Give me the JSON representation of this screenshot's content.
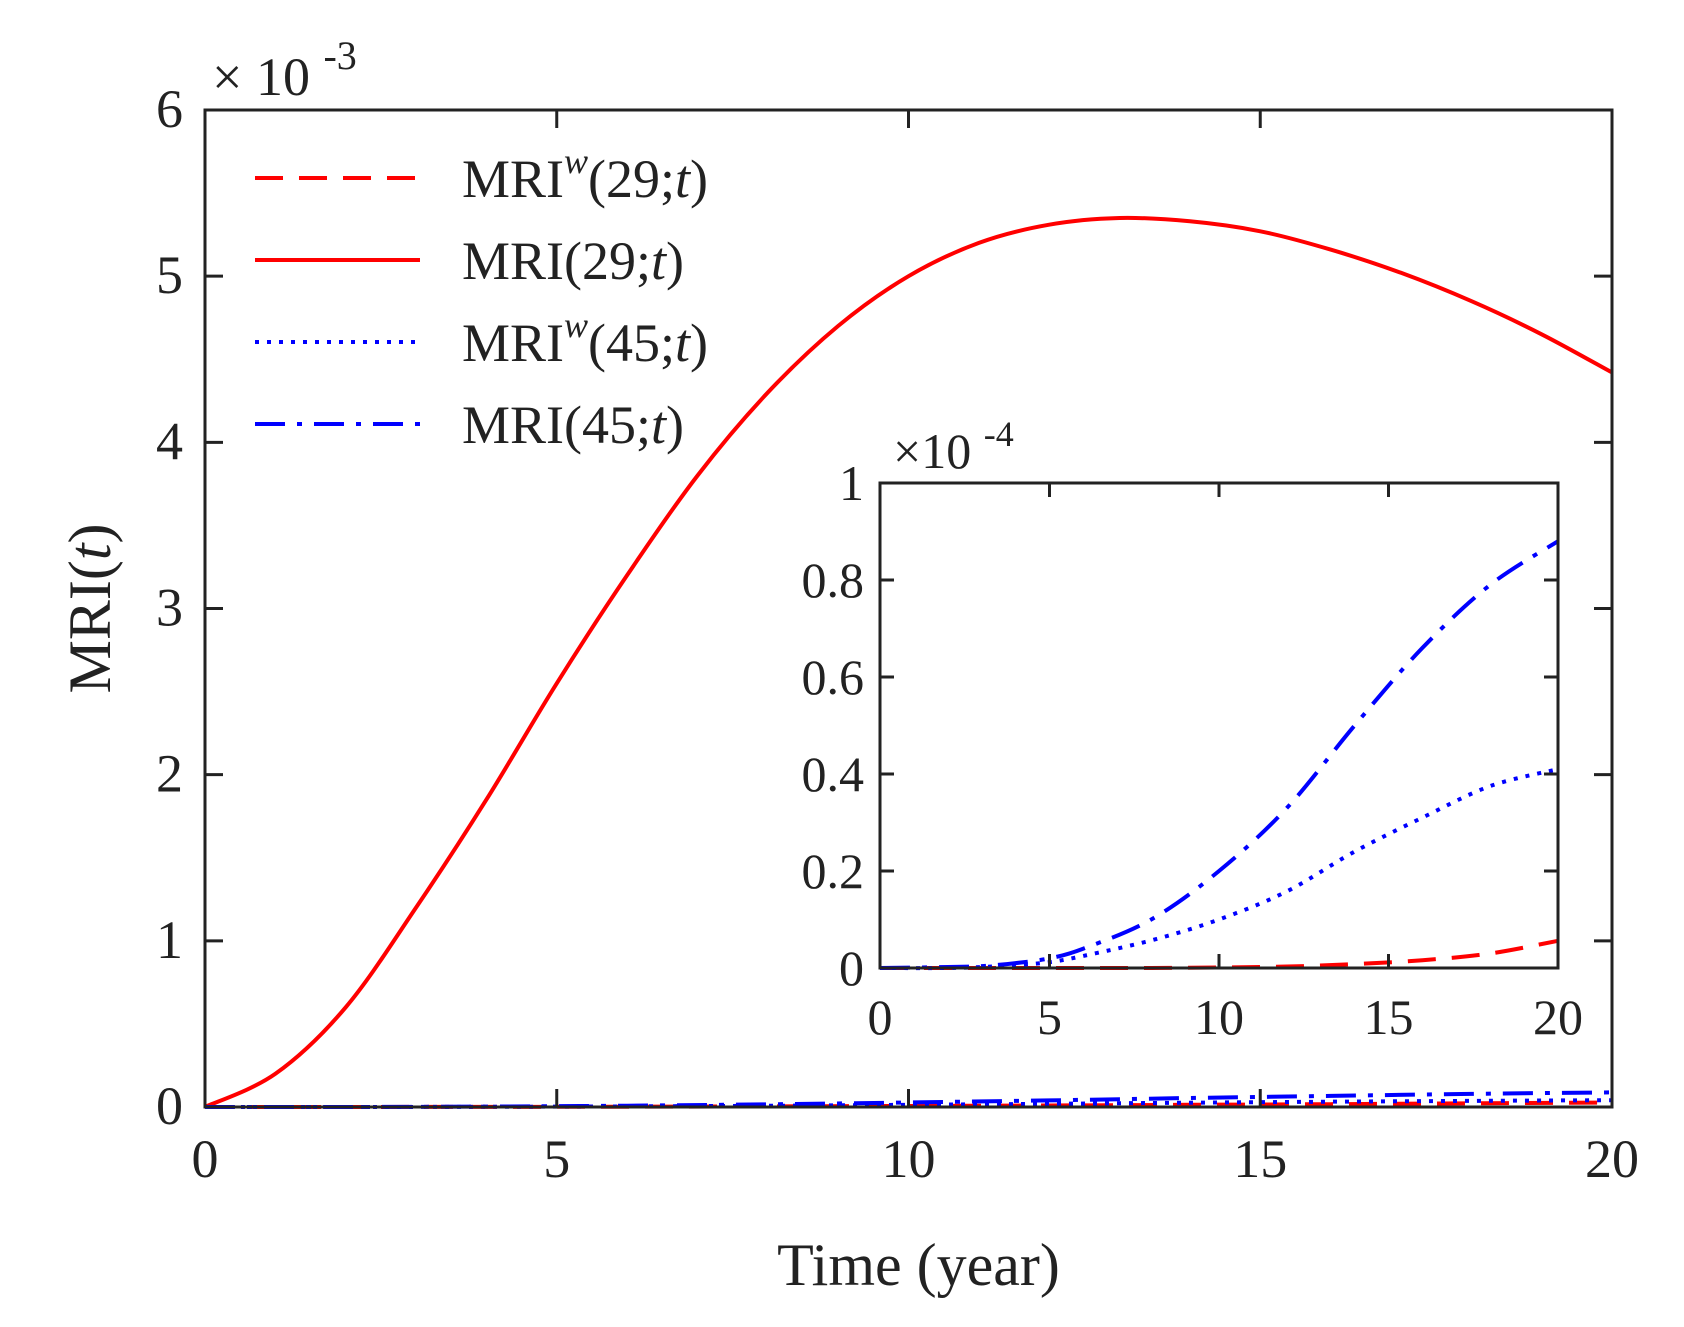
{
  "chart_data": [
    {
      "id": "main",
      "type": "line",
      "xlabel": "Time (year)",
      "ylabel": "MRI(t)",
      "ylabel_parts": {
        "prefix": "MRI(",
        "var": "t",
        "suffix": ")"
      },
      "xlim": [
        0,
        20
      ],
      "ylim": [
        0,
        6
      ],
      "xticks": [
        0,
        5,
        10,
        15,
        20
      ],
      "yticks": [
        0,
        1,
        2,
        3,
        4,
        5,
        6
      ],
      "xtick_labels": [
        "0",
        "5",
        "10",
        "15",
        "20"
      ],
      "ytick_labels": [
        "0",
        "1",
        "2",
        "3",
        "4",
        "5",
        "6"
      ],
      "exponent": {
        "base": "× 10",
        "power": "-3"
      },
      "legend_position": "top-left",
      "series": [
        {
          "key": "w29",
          "name": "MRI^w(29;t)",
          "color": "#ff0000",
          "dash": "dashed",
          "x": [
            0,
            2,
            4,
            6,
            8,
            10,
            12,
            14,
            16,
            18,
            20
          ],
          "y": [
            0,
            0.0002,
            0.0008,
            0.0019,
            0.0037,
            0.0062,
            0.0093,
            0.013,
            0.017,
            0.022,
            0.027
          ]
        },
        {
          "key": "m29",
          "name": "MRI(29;t)",
          "color": "#ff0000",
          "dash": "solid",
          "x": [
            0,
            1,
            2,
            3,
            4,
            5,
            6,
            7,
            8,
            9,
            10,
            11,
            12,
            13,
            14,
            15,
            16,
            17,
            18,
            19,
            20
          ],
          "y": [
            0,
            0.2,
            0.6,
            1.2,
            1.85,
            2.55,
            3.2,
            3.8,
            4.3,
            4.7,
            5.0,
            5.2,
            5.31,
            5.35,
            5.33,
            5.27,
            5.16,
            5.02,
            4.85,
            4.65,
            4.42
          ]
        },
        {
          "key": "w45",
          "name": "MRI^w(45;t)",
          "color": "#0000ff",
          "dash": "dotted",
          "x": [
            0,
            2,
            4,
            6,
            8,
            10,
            12,
            14,
            16,
            18,
            20
          ],
          "y": [
            0,
            0.0001,
            0.0012,
            0.0035,
            0.0075,
            0.013,
            0.019,
            0.026,
            0.032,
            0.037,
            0.041
          ]
        },
        {
          "key": "m45",
          "name": "MRI(45;t)",
          "color": "#0000ff",
          "dash": "dashdot",
          "x": [
            0,
            2,
            4,
            6,
            8,
            10,
            12,
            14,
            16,
            18,
            20
          ],
          "y": [
            0,
            0.0003,
            0.0025,
            0.008,
            0.016,
            0.027,
            0.04,
            0.054,
            0.067,
            0.079,
            0.088
          ]
        }
      ],
      "legend": [
        {
          "series": "w29",
          "base": "MRI",
          "sup": "w",
          "arg_prefix": "(29;",
          "arg_var": "t",
          "arg_suffix": ")"
        },
        {
          "series": "m29",
          "base": "MRI",
          "sup": "",
          "arg_prefix": "(29;",
          "arg_var": "t",
          "arg_suffix": ")"
        },
        {
          "series": "w45",
          "base": "MRI",
          "sup": "w",
          "arg_prefix": "(45;",
          "arg_var": "t",
          "arg_suffix": ")"
        },
        {
          "series": "m45",
          "base": "MRI",
          "sup": "",
          "arg_prefix": "(45;",
          "arg_var": "t",
          "arg_suffix": ")"
        }
      ]
    },
    {
      "id": "inset",
      "type": "line",
      "xlim": [
        0,
        20
      ],
      "ylim": [
        0,
        1
      ],
      "xticks": [
        0,
        5,
        10,
        15,
        20
      ],
      "yticks": [
        0,
        0.2,
        0.4,
        0.6,
        0.8,
        1
      ],
      "xtick_labels": [
        "0",
        "5",
        "10",
        "15",
        "20"
      ],
      "ytick_labels": [
        "0",
        "0.2",
        "0.4",
        "0.6",
        "0.8",
        "1"
      ],
      "exponent": {
        "base": "×10",
        "power": "-4"
      },
      "series": [
        {
          "key": "w29",
          "color": "#ff0000",
          "dash": "dashed",
          "x": [
            0,
            2,
            4,
            6,
            8,
            10,
            12,
            14,
            16,
            18,
            20
          ],
          "y": [
            0,
            0,
            0,
            0,
            0,
            0.001,
            0.003,
            0.008,
            0.016,
            0.03,
            0.056
          ]
        },
        {
          "key": "w45",
          "color": "#0000ff",
          "dash": "dotted",
          "x": [
            0,
            2,
            3,
            4,
            5,
            6,
            8,
            10,
            12,
            14,
            16,
            18,
            20
          ],
          "y": [
            0,
            0,
            0.002,
            0.006,
            0.012,
            0.025,
            0.057,
            0.1,
            0.158,
            0.24,
            0.31,
            0.375,
            0.41
          ]
        },
        {
          "key": "m45",
          "color": "#0000ff",
          "dash": "dashdot",
          "x": [
            0,
            2,
            3,
            4,
            5,
            6,
            8,
            10,
            12,
            14,
            16,
            18,
            20
          ],
          "y": [
            0,
            0.002,
            0.004,
            0.01,
            0.02,
            0.04,
            0.1,
            0.2,
            0.33,
            0.5,
            0.66,
            0.79,
            0.88
          ]
        }
      ]
    }
  ]
}
